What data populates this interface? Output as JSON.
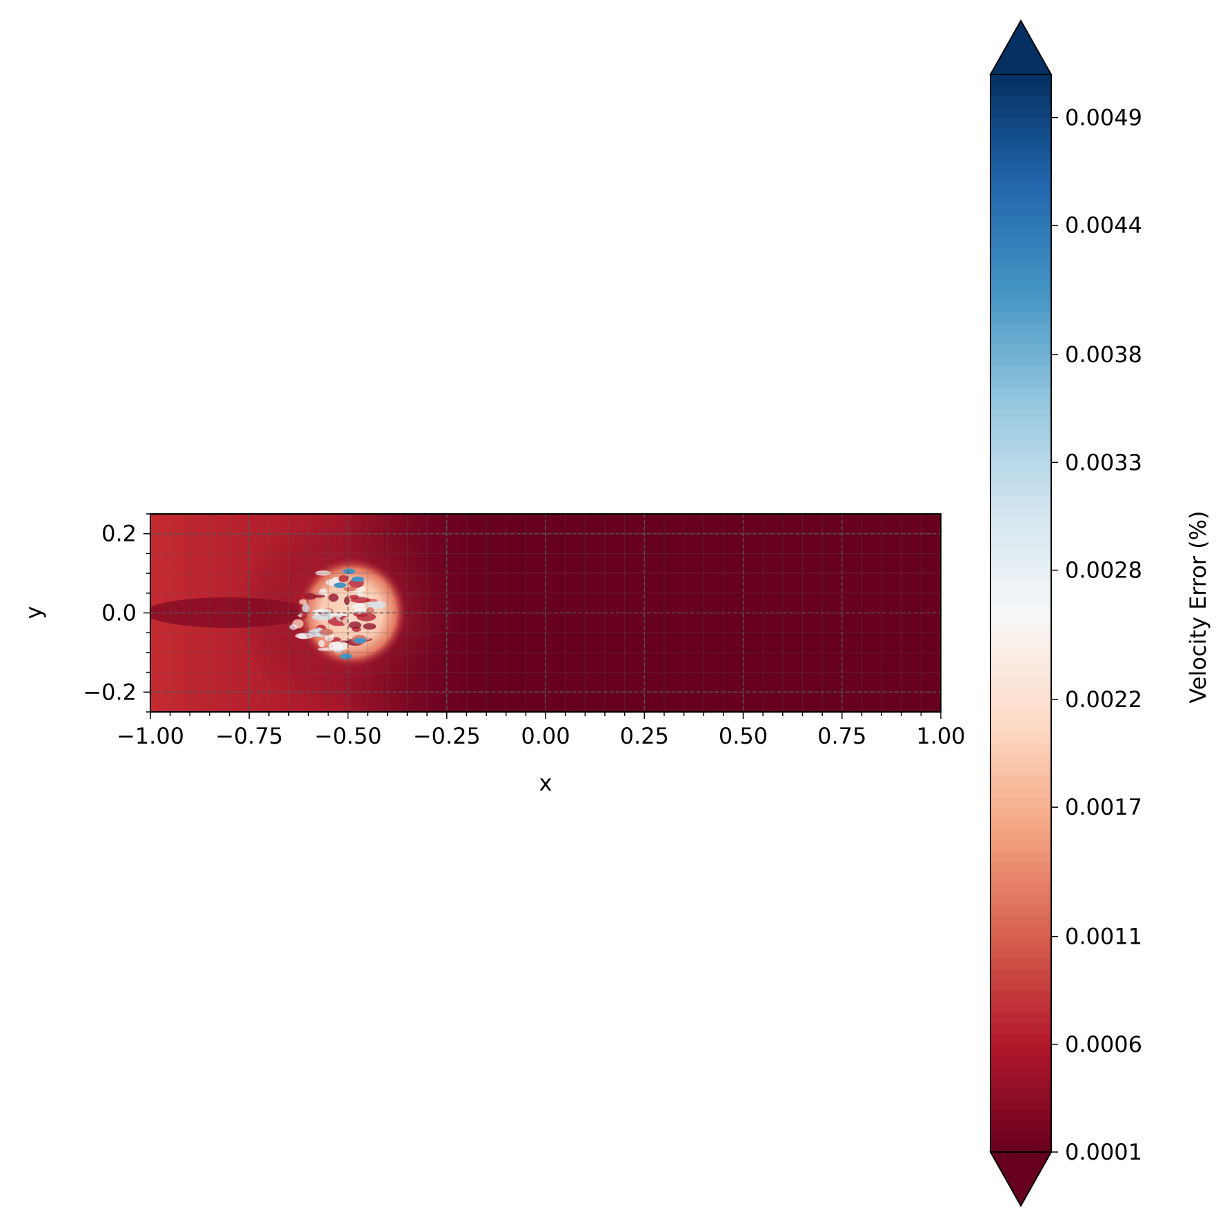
{
  "chart_data": {
    "type": "heatmap",
    "title": "",
    "xlabel": "x",
    "ylabel": "y",
    "xlim": [
      -1.0,
      1.0
    ],
    "ylim": [
      -0.25,
      0.25
    ],
    "x_ticks": [
      -1.0,
      -0.75,
      -0.5,
      -0.25,
      0.0,
      0.25,
      0.5,
      0.75,
      1.0
    ],
    "x_tick_labels": [
      "−1.00",
      "−0.75",
      "−0.50",
      "−0.25",
      "0.00",
      "0.25",
      "0.50",
      "0.75",
      "1.00"
    ],
    "y_ticks": [
      -0.2,
      0.0,
      0.2
    ],
    "y_tick_labels": [
      "−0.2",
      "0.0",
      "0.2"
    ],
    "grid": true,
    "colormap": "RdBu",
    "colorbar": {
      "label": "Velocity Error (%)",
      "ticks": [
        0.0001,
        0.0006,
        0.0011,
        0.0017,
        0.0022,
        0.0028,
        0.0033,
        0.0038,
        0.0044,
        0.0049
      ],
      "tick_labels": [
        "0.0001",
        "0.0006",
        "0.0011",
        "0.0017",
        "0.0022",
        "0.0028",
        "0.0033",
        "0.0038",
        "0.0044",
        "0.0049"
      ],
      "range": [
        0.0001,
        0.0051
      ],
      "extend": "both"
    },
    "field_features": {
      "background_value": 0.0002,
      "inlet_region_value": 0.0006,
      "hotspot": {
        "center_x": -0.5,
        "center_y": 0.0,
        "radius": 0.14,
        "typical_value": 0.0025,
        "peak_value": 0.0042
      }
    }
  },
  "colors": {
    "darkred": "#67001f",
    "red": "#b2182b",
    "salmon": "#d6604d",
    "peach": "#f4a582",
    "pink": "#fddbc7",
    "white": "#f7f7f7",
    "lightblue": "#d1e5f0",
    "skyblue": "#92c5de",
    "blue": "#4393c3",
    "midblue": "#2166ac",
    "navy": "#053061",
    "grid": "#555555"
  }
}
